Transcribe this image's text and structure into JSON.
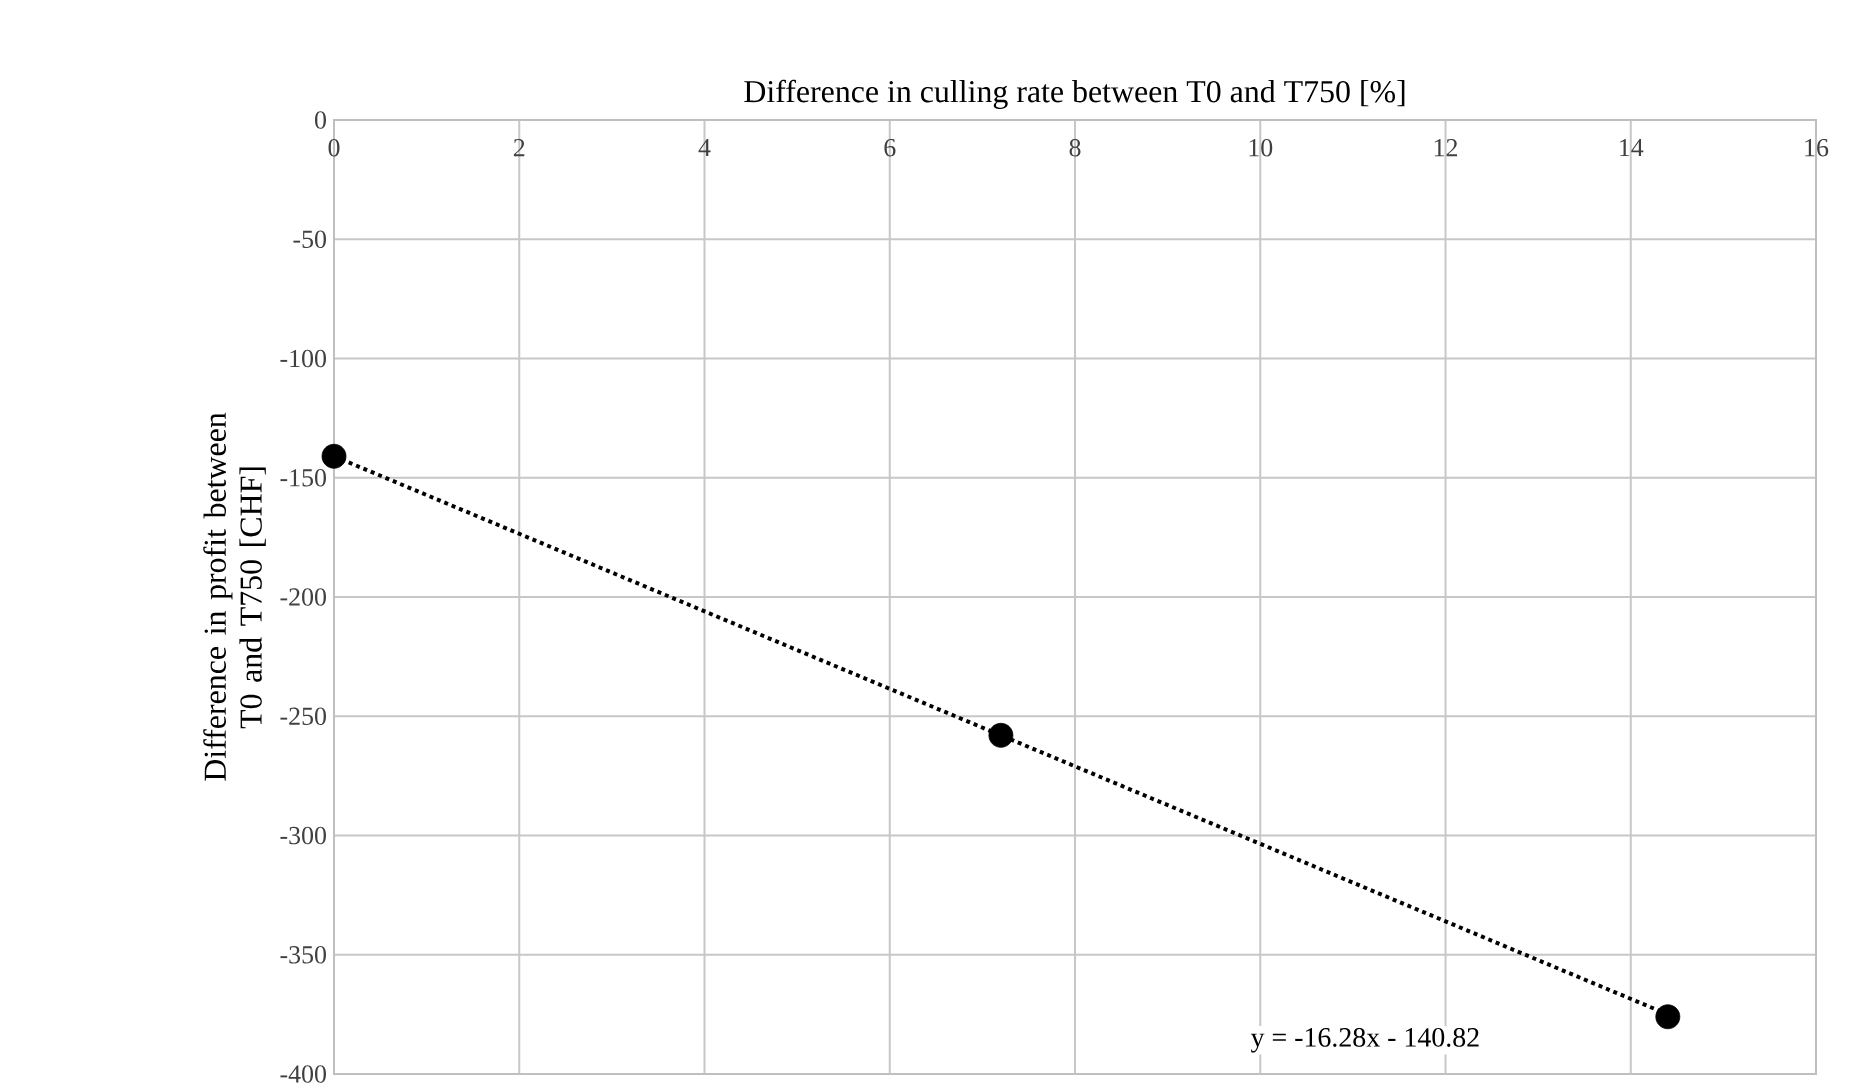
{
  "chart_data": {
    "type": "scatter",
    "xlabel": "Difference in culling rate between T0 and T750 [%]",
    "ylabel": "Difference in profit between T0 and T750 [CHF]",
    "xlim": [
      0,
      16
    ],
    "xticks": [
      0,
      2,
      4,
      6,
      8,
      10,
      12,
      14,
      16
    ],
    "ylim": [
      -400,
      0
    ],
    "yticks": [
      -400,
      -350,
      -300,
      -250,
      -200,
      -150,
      -100,
      -50,
      0
    ],
    "grid": true,
    "series": [
      {
        "color": "#000000",
        "marker": "circle",
        "x": [
          0,
          7.2,
          14.4
        ],
        "values": [
          -141,
          -258,
          -376
        ]
      },
      {
        "type": "line",
        "color": "#000000",
        "line_style": "dotted",
        "x": [
          0,
          14.4
        ],
        "values": [
          -141,
          -375
        ]
      }
    ],
    "annotations": [
      "y = -16.28x - 140.82"
    ]
  }
}
